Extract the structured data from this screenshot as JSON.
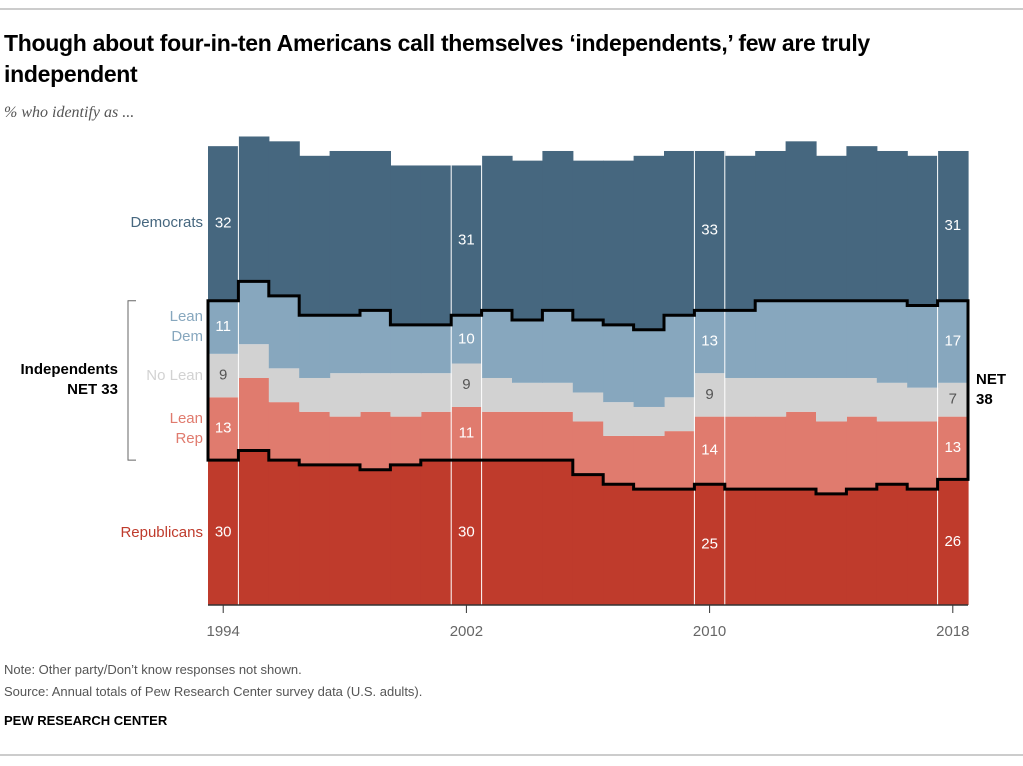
{
  "chart_data": {
    "type": "stacked_step_area",
    "title": "Though about four-in-ten Americans call themselves ‘independents,’ few are truly independent",
    "subtitle": "% who identify as ...",
    "x": [
      1994,
      1995,
      1996,
      1997,
      1998,
      1999,
      2000,
      2001,
      2002,
      2003,
      2004,
      2005,
      2006,
      2007,
      2008,
      2009,
      2010,
      2011,
      2012,
      2013,
      2014,
      2015,
      2016,
      2017,
      2018
    ],
    "xlim": [
      1993.5,
      2018.5
    ],
    "xticks": [
      1994,
      2002,
      2010,
      2018
    ],
    "series": [
      {
        "name": "Republicans",
        "color": "#bf3b2c",
        "values": [
          30,
          32,
          30,
          29,
          29,
          28,
          29,
          30,
          30,
          30,
          30,
          30,
          27,
          25,
          24,
          24,
          25,
          24,
          24,
          24,
          23,
          24,
          25,
          24,
          26
        ]
      },
      {
        "name": "Lean Rep",
        "color": "#e07b6e",
        "values": [
          13,
          15,
          12,
          11,
          10,
          12,
          10,
          10,
          11,
          10,
          10,
          10,
          11,
          10,
          11,
          12,
          14,
          15,
          15,
          16,
          15,
          15,
          13,
          14,
          13
        ]
      },
      {
        "name": "No Lean",
        "color": "#d2d2d2",
        "values": [
          9,
          7,
          7,
          7,
          9,
          8,
          9,
          8,
          9,
          7,
          6,
          6,
          6,
          7,
          6,
          7,
          9,
          8,
          8,
          7,
          9,
          8,
          8,
          7,
          7
        ]
      },
      {
        "name": "Lean Dem",
        "color": "#87a7be",
        "values": [
          11,
          13,
          15,
          13,
          12,
          13,
          10,
          10,
          10,
          14,
          13,
          15,
          15,
          16,
          16,
          17,
          13,
          14,
          16,
          16,
          16,
          16,
          17,
          17,
          17
        ]
      },
      {
        "name": "Democrats",
        "color": "#46677f",
        "values": [
          32,
          30,
          32,
          33,
          34,
          33,
          33,
          33,
          31,
          32,
          33,
          33,
          33,
          34,
          36,
          34,
          33,
          32,
          31,
          33,
          30,
          32,
          31,
          31,
          31
        ]
      }
    ],
    "annotations": [
      "Independents NET 33",
      "NET 38"
    ],
    "note": "Note: Other party/Don’t know responses not shown.",
    "source": "Source: Annual totals of Pew Research Center survey data (U.S. adults).",
    "credit": "PEW RESEARCH CENTER"
  }
}
